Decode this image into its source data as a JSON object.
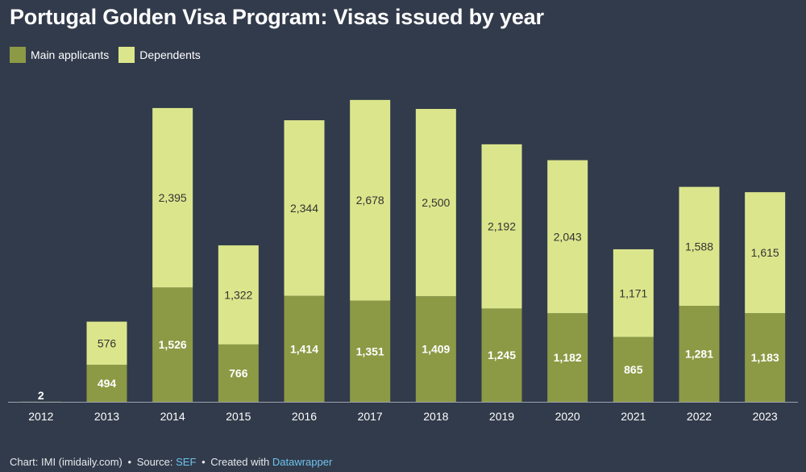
{
  "title": "Portugal Golden Visa Program: Visas issued by year",
  "legend": [
    {
      "label": "Main applicants",
      "color": "#8c9a45"
    },
    {
      "label": "Dependents",
      "color": "#dbe68c"
    }
  ],
  "footer": {
    "chart_by": "Chart: IMI (imidaily.com)",
    "source_prefix": "Source:",
    "source_link": "SEF",
    "created_prefix": "Created with",
    "created_link": "Datawrapper"
  },
  "chart_data": {
    "type": "bar",
    "stacked": true,
    "categories": [
      "2012",
      "2013",
      "2014",
      "2015",
      "2016",
      "2017",
      "2018",
      "2019",
      "2020",
      "2021",
      "2022",
      "2023"
    ],
    "series": [
      {
        "name": "Main applicants",
        "color": "#8c9a45",
        "values": [
          2,
          494,
          1526,
          766,
          1414,
          1351,
          1409,
          1245,
          1182,
          865,
          1281,
          1183
        ]
      },
      {
        "name": "Dependents",
        "color": "#dbe68c",
        "values": [
          0,
          576,
          2395,
          1322,
          2344,
          2678,
          2500,
          2192,
          2043,
          1171,
          1588,
          1615
        ]
      }
    ],
    "data_labels": {
      "Main applicants": [
        "2",
        "494",
        "1,526",
        "766",
        "1,414",
        "1,351",
        "1,409",
        "1,245",
        "1,182",
        "865",
        "1,281",
        "1,183"
      ],
      "Dependents": [
        "",
        "576",
        "2,395",
        "1,322",
        "2,344",
        "2,678",
        "2,500",
        "2,192",
        "2,043",
        "1,171",
        "1,588",
        "1,615"
      ]
    },
    "ylim": [
      0,
      4200
    ],
    "grid": false,
    "legend_position": "top-left"
  }
}
